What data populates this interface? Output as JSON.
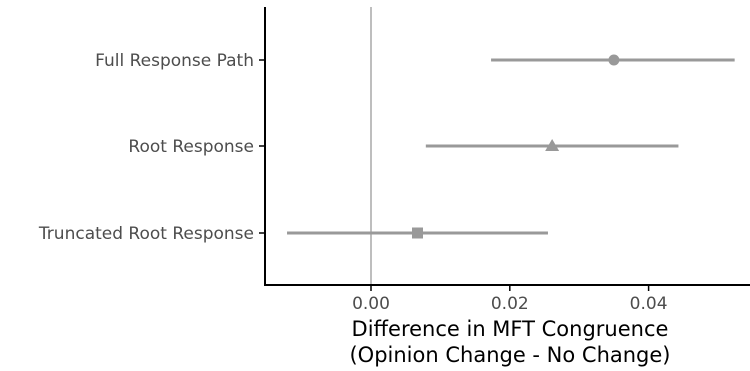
{
  "chart_data": {
    "type": "scatter",
    "subtype": "dot-and-whisker",
    "orientation": "horizontal",
    "title": "",
    "xlabel_lines": [
      "Difference in MFT Congruence",
      "(Opinion Change - No Change)"
    ],
    "ylabel": "",
    "xlim": [
      -0.015,
      0.0525
    ],
    "x_ticks": [
      0.0,
      0.02,
      0.04
    ],
    "x_tick_labels": [
      "0.00",
      "0.02",
      "0.04"
    ],
    "reference_line_x": 0,
    "grid": false,
    "legend": "none",
    "categories": [
      "Full Response Path",
      "Root Response",
      "Truncated Root Response"
    ],
    "points": [
      {
        "category": "Full Response Path",
        "estimate": 0.035,
        "low": 0.0173,
        "high": 0.0524,
        "marker": "circle"
      },
      {
        "category": "Root Response",
        "estimate": 0.0261,
        "low": 0.0079,
        "high": 0.0443,
        "marker": "triangle"
      },
      {
        "category": "Truncated Root Response",
        "estimate": 0.0067,
        "low": -0.0121,
        "high": 0.0255,
        "marker": "square"
      }
    ],
    "colors": {
      "marks": "#999999",
      "reference_line": "#bebebe",
      "axis": "#000000",
      "tick_label": "#4d4d4d"
    }
  }
}
